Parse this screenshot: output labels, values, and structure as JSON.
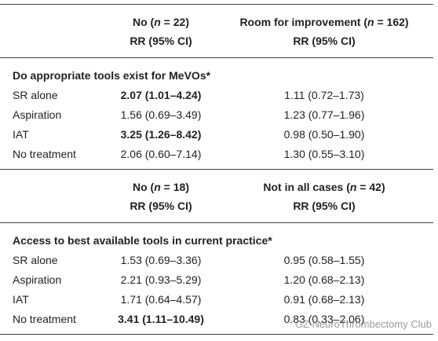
{
  "sections": [
    {
      "columns": [
        {
          "pre": "No (",
          "var": "n",
          "post": " = 22)",
          "sub": "RR (95% CI)"
        },
        {
          "pre": "Room for improvement (",
          "var": "n",
          "post": " = 162)",
          "sub": "RR (95% CI)"
        }
      ],
      "title": "Do appropriate tools exist for MeVOs*",
      "rows": [
        {
          "label": "SR alone",
          "cells": [
            {
              "text": "2.07 (1.01–4.24)",
              "bold": true
            },
            {
              "text": "1.11 (0.72–1.73)",
              "bold": false
            }
          ]
        },
        {
          "label": "Aspiration",
          "cells": [
            {
              "text": "1.56 (0.69–3.49)",
              "bold": false
            },
            {
              "text": "1.23 (0.77–1.96)",
              "bold": false
            }
          ]
        },
        {
          "label": "IAT",
          "cells": [
            {
              "text": "3.25 (1.26–8.42)",
              "bold": true
            },
            {
              "text": "0.98 (0.50–1.90)",
              "bold": false
            }
          ]
        },
        {
          "label": "No treatment",
          "cells": [
            {
              "text": "2.06 (0.60–7.14)",
              "bold": false
            },
            {
              "text": "1.30 (0.55–3.10)",
              "bold": false
            }
          ]
        }
      ]
    },
    {
      "columns": [
        {
          "pre": "No (",
          "var": "n",
          "post": " = 18)",
          "sub": "RR (95% CI)"
        },
        {
          "pre": "Not in all cases (",
          "var": "n",
          "post": " = 42)",
          "sub": "RR (95% CI)"
        }
      ],
      "title": "Access to best available tools in current practice*",
      "rows": [
        {
          "label": "SR alone",
          "cells": [
            {
              "text": "1.53 (0.69–3.36)",
              "bold": false
            },
            {
              "text": "0.95 (0.58–1.55)",
              "bold": false
            }
          ]
        },
        {
          "label": "Aspiration",
          "cells": [
            {
              "text": "2.21 (0.93–5.29)",
              "bold": false
            },
            {
              "text": "1.20 (0.68–2.13)",
              "bold": false
            }
          ]
        },
        {
          "label": "IAT",
          "cells": [
            {
              "text": "1.71 (0.64–4.57)",
              "bold": false
            },
            {
              "text": "0.91 (0.68–2.13)",
              "bold": false
            }
          ]
        },
        {
          "label": "No treatment",
          "cells": [
            {
              "text": "3.41 (1.11–10.49)",
              "bold": true
            },
            {
              "text": "0.83 (0.33–2.06)",
              "bold": false
            }
          ]
        }
      ]
    }
  ],
  "watermark": "GZ NeuroThrombectomy Club"
}
